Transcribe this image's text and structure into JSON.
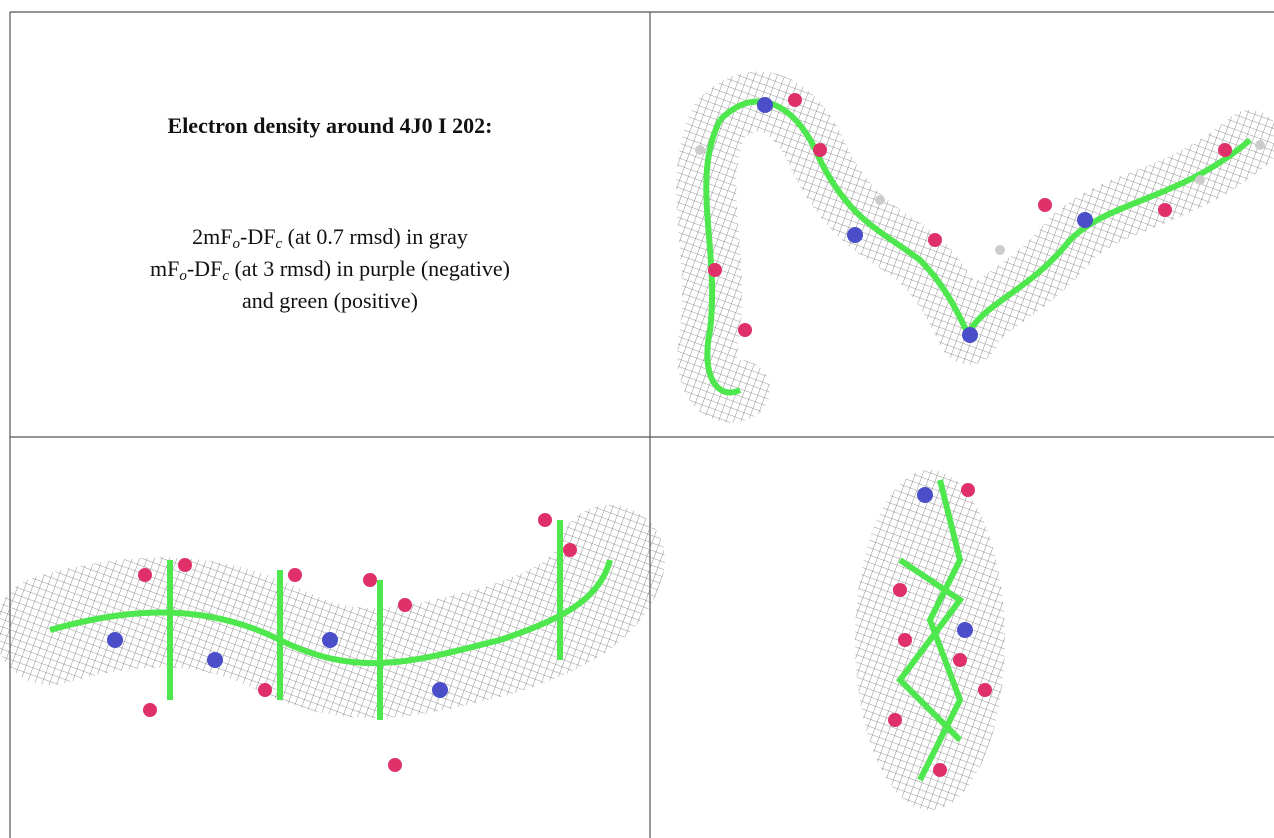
{
  "title": "Electron density around 4J0 I 202:",
  "legend": {
    "line1": {
      "a": "2mF",
      "b": "o",
      "c": "-DF",
      "d": "c",
      "e": " (at 0.7 rmsd) in gray"
    },
    "line2": {
      "a": "mF",
      "b": "o",
      "c": "-DF",
      "d": "c",
      "e": " (at 3 rmsd) in purple (negative)"
    },
    "line3": "and green (positive)"
  }
}
